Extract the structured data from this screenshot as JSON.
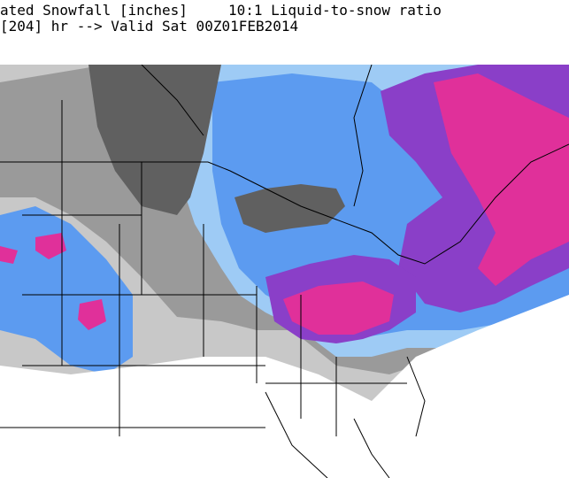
{
  "header": {
    "title_left": "ated Snowfall [inches]",
    "title_right": "10:1 Liquid-to-snow ratio",
    "valid_line": "[204] hr --> Valid Sat 00Z01FEB2014"
  }
}
